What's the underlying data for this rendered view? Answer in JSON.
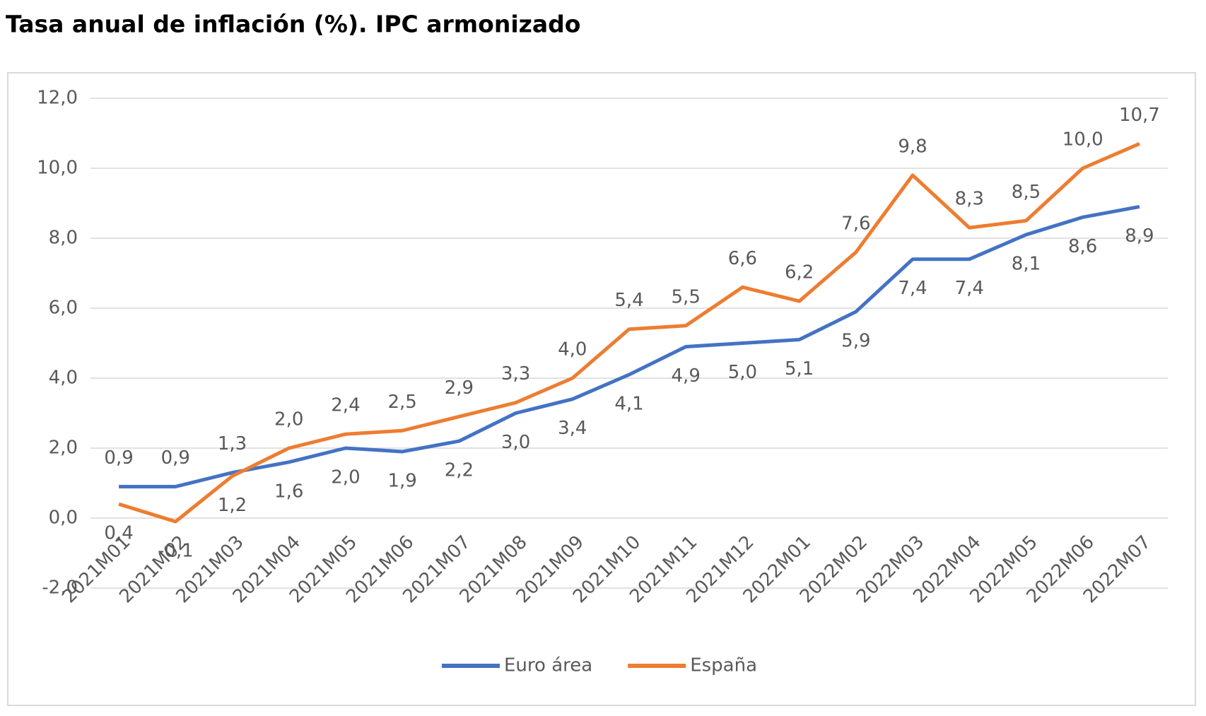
{
  "chart_data": {
    "type": "line",
    "title": "Tasa anual de inflación (%). IPC armonizado",
    "categories": [
      "2021M01",
      "2021M02",
      "2021M03",
      "2021M04",
      "2021M05",
      "2021M06",
      "2021M07",
      "2021M08",
      "2021M09",
      "2021M10",
      "2021M11",
      "2021M12",
      "2022M01",
      "2022M02",
      "2022M03",
      "2022M04",
      "2022M05",
      "2022M06",
      "2022M07"
    ],
    "series": [
      {
        "name": "Euro área",
        "color": "#4472c4",
        "values": [
          0.9,
          0.9,
          1.3,
          1.6,
          2.0,
          1.9,
          2.2,
          3.0,
          3.4,
          4.1,
          4.9,
          5.0,
          5.1,
          5.9,
          7.4,
          7.4,
          8.1,
          8.6,
          8.9
        ],
        "value_labels": [
          "0,9",
          "0,9",
          "1,3",
          "1,6",
          "2,0",
          "1,9",
          "2,2",
          "3,0",
          "3,4",
          "4,1",
          "4,9",
          "5,0",
          "5,1",
          "5,9",
          "7,4",
          "7,4",
          "8,1",
          "8,6",
          "8,9"
        ]
      },
      {
        "name": "España",
        "color": "#ed7d31",
        "values": [
          0.4,
          -0.1,
          1.2,
          2.0,
          2.4,
          2.5,
          2.9,
          3.3,
          4.0,
          5.4,
          5.5,
          6.6,
          6.2,
          7.6,
          9.8,
          8.3,
          8.5,
          10.0,
          10.7
        ],
        "value_labels": [
          "0,4",
          "-0,1",
          "1,2",
          "2,0",
          "2,4",
          "2,5",
          "2,9",
          "3,3",
          "4,0",
          "5,4",
          "5,5",
          "6,6",
          "6,2",
          "7,6",
          "9,8",
          "8,3",
          "8,5",
          "10,0",
          "10,7"
        ]
      }
    ],
    "ylim": [
      -2,
      12
    ],
    "yticks": [
      {
        "value": -2,
        "label": "-2,0"
      },
      {
        "value": 0,
        "label": "0,0"
      },
      {
        "value": 2,
        "label": "2,0"
      },
      {
        "value": 4,
        "label": "4,0"
      },
      {
        "value": 6,
        "label": "6,0"
      },
      {
        "value": 8,
        "label": "8,0"
      },
      {
        "value": 10,
        "label": "10,0"
      },
      {
        "value": 12,
        "label": "12,0"
      }
    ],
    "grid": true,
    "legend": "bottom"
  }
}
